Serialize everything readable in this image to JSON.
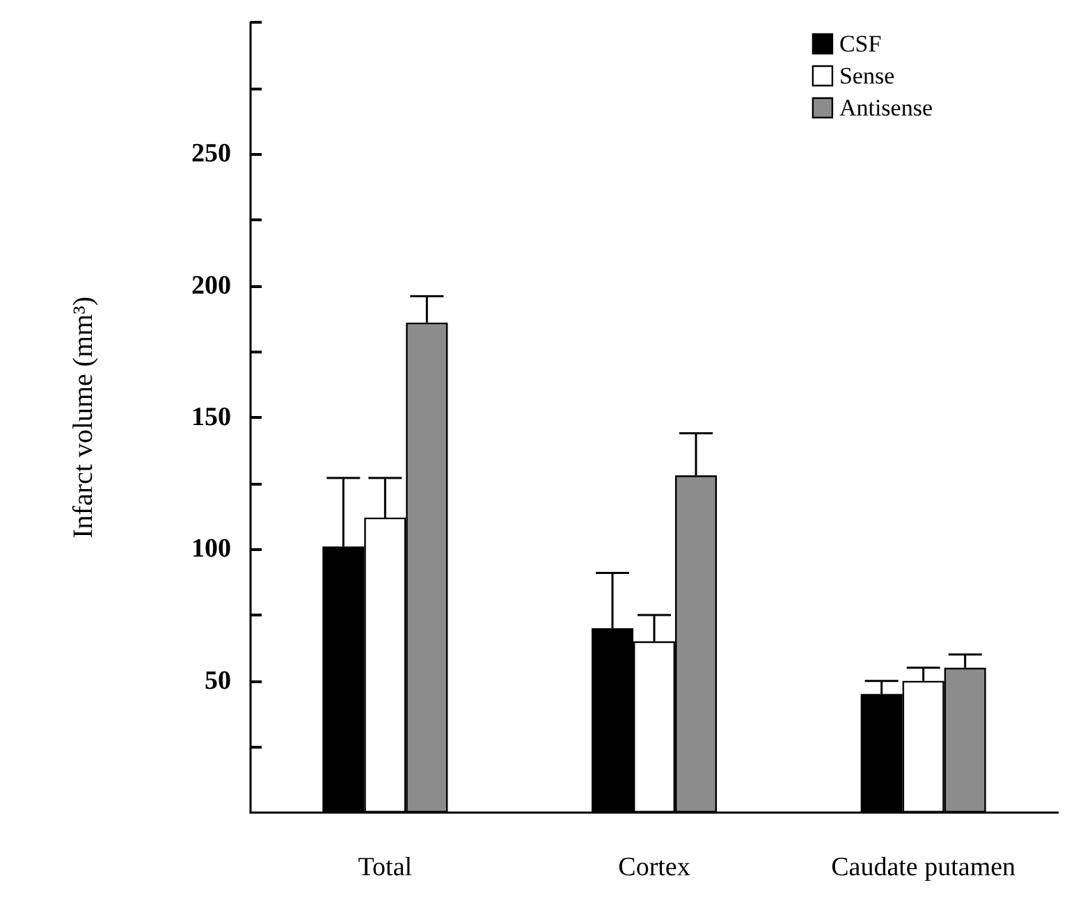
{
  "chart_data": {
    "type": "bar",
    "ylabel": "Infarct volume (mm³)",
    "categories": [
      "Total",
      "Cortex",
      "Caudate putamen"
    ],
    "series": [
      {
        "name": "CSF",
        "color": "#000000",
        "values": [
          101,
          70,
          45
        ],
        "errors": [
          [
            101,
            127
          ],
          [
            70,
            91
          ],
          [
            45,
            50
          ]
        ]
      },
      {
        "name": "Sense",
        "color": "#ffffff",
        "values": [
          112,
          65,
          50
        ],
        "errors": [
          [
            112,
            127
          ],
          [
            65,
            75
          ],
          [
            50,
            55
          ]
        ]
      },
      {
        "name": "Antisense",
        "color": "#8c8c8c",
        "values": [
          186,
          128,
          55
        ],
        "errors": [
          [
            186,
            196
          ],
          [
            128,
            144
          ],
          [
            55,
            60
          ]
        ]
      }
    ],
    "ylim": [
      0,
      300
    ],
    "yticks": [
      {
        "value": 25,
        "label": null
      },
      50,
      {
        "value": 75,
        "label": null
      },
      100,
      {
        "value": 125,
        "label": null
      },
      150,
      {
        "value": 175,
        "label": null
      },
      200,
      {
        "value": 225,
        "label": null
      },
      250,
      {
        "value": 275,
        "label": null
      },
      {
        "value": 300,
        "label": null
      }
    ],
    "grid": false,
    "legend": "top right"
  }
}
